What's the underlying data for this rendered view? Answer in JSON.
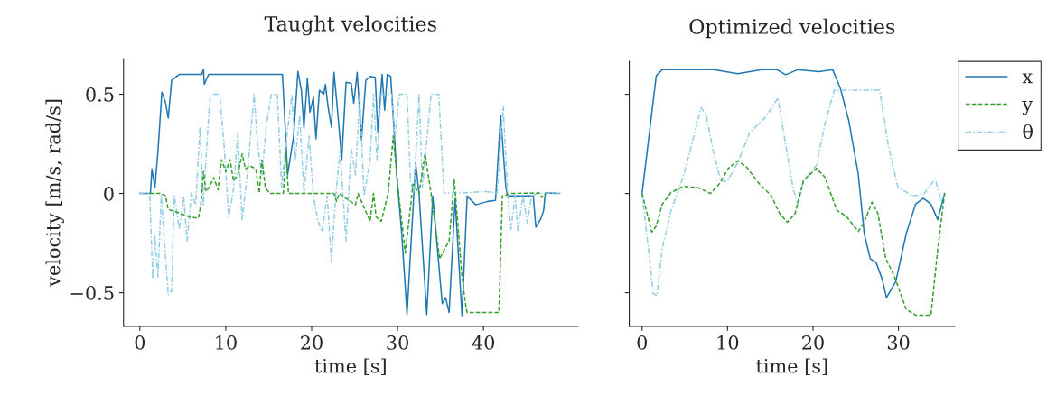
{
  "chart_data": [
    {
      "type": "line",
      "title": "Taught velocities",
      "xlabel": "time [s]",
      "ylabel": "velocity [m/s, rad/s]",
      "xlim": [
        -1.9,
        51
      ],
      "ylim": [
        -0.67,
        0.68
      ],
      "xticks": [
        0,
        10,
        20,
        30,
        40
      ],
      "yticks": [
        {
          "value": -0.5,
          "label": "−0.5"
        },
        0,
        0.5
      ],
      "grid": false,
      "legend": false,
      "series": [
        {
          "color": "#1f78b4",
          "line_style": "solid",
          "x": [
            0,
            1.05,
            1.23,
            1.4,
            1.75,
            2.1,
            2.56,
            2.98,
            3.3,
            3.7,
            4.56,
            7.2,
            7.4,
            7.5,
            8.0,
            16.6,
            17.2,
            17.9,
            18.4,
            18.8,
            19.1,
            19.5,
            19.8,
            20.2,
            20.5,
            20.9,
            21.4,
            21.6,
            21.9,
            22.3,
            22.6,
            23,
            23.5,
            24,
            24.6,
            24.9,
            25.3,
            25.8,
            26.3,
            26.8,
            27.4,
            27.7,
            28.2,
            28.5,
            28.8,
            29.2,
            29.7,
            29.9,
            30.5,
            31.1,
            32.1,
            32.5,
            33.4,
            34.1,
            35.2,
            35.6,
            36,
            36.7,
            37.5,
            38.1,
            39.1,
            40.5,
            41.4,
            42,
            42.6,
            42.8,
            45.8,
            46.1,
            46.7,
            47,
            47.2,
            48.9
          ],
          "values": [
            0,
            0,
            0,
            0.124,
            0.03,
            0.21,
            0.51,
            0.46,
            0.38,
            0.57,
            0.6,
            0.6,
            0.625,
            0.55,
            0.6,
            0.6,
            0.095,
            0.29,
            0.615,
            0.52,
            0.33,
            0.58,
            0.41,
            0.485,
            0.275,
            0.52,
            0.5,
            0.55,
            0.44,
            0.335,
            0.61,
            0.425,
            0.17,
            0.56,
            0.555,
            0.455,
            0.61,
            0.27,
            0.57,
            0.59,
            0.585,
            0.31,
            0.6,
            0.42,
            0.6,
            0.59,
            0.245,
            0.094,
            -0.21,
            -0.61,
            0.154,
            0,
            -0.61,
            -0.012,
            -0.555,
            -0.525,
            -0.6,
            -0.027,
            -0.615,
            -0.012,
            -0.057,
            -0.04,
            -0.035,
            0.395,
            0.033,
            -0.012,
            -0.012,
            -0.17,
            -0.125,
            -0.087,
            0.003,
            0
          ]
        },
        {
          "color": "#33a02c",
          "line_style": "dashed",
          "x": [
            1.16,
            1.5,
            2.5,
            2.98,
            3.3,
            4.4,
            5.8,
            6.8,
            7.1,
            7.4,
            7.7,
            8.1,
            8.6,
            9.1,
            9.5,
            10,
            10.5,
            10.9,
            11.4,
            11.9,
            12.3,
            12.8,
            13.5,
            13.9,
            14.2,
            14.6,
            15.1,
            16.7,
            17,
            17.3,
            22.6,
            22.9,
            23.2,
            25.1,
            25.4,
            26.8,
            27.2,
            27.5,
            28.1,
            28.9,
            29.5,
            30,
            30.9,
            31.8,
            32.5,
            33.2,
            33.9,
            34.9,
            35.6,
            36,
            36.6,
            37.5,
            37.9,
            38.1,
            41.8,
            42.2,
            43.3,
            46.5,
            46.8,
            47.3
          ],
          "values": [
            0,
            0,
            0,
            -0.012,
            -0.08,
            -0.095,
            -0.118,
            -0.125,
            -0.057,
            0.11,
            0.01,
            0.033,
            0.08,
            0.018,
            0.17,
            0.11,
            0.17,
            0.063,
            0.094,
            0.2,
            0.124,
            0.14,
            0.124,
            0.003,
            0.17,
            0.033,
            0,
            0,
            0.215,
            0,
            0,
            -0.04,
            0,
            -0.057,
            0,
            -0.14,
            0,
            -0.118,
            -0.14,
            0,
            0.29,
            0.048,
            -0.3,
            0.048,
            0,
            0.2,
            0,
            -0.33,
            -0.27,
            -0.24,
            0.07,
            -0.42,
            -0.555,
            -0.6,
            -0.6,
            -0.012,
            0,
            0.003,
            -0.02,
            0
          ]
        },
        {
          "color": "#91cde6",
          "line_style": "dashdot",
          "x": [
            0,
            1.0,
            1.16,
            1.5,
            1.75,
            2.1,
            2.5,
            2.8,
            3.3,
            3.7,
            4,
            4.6,
            5.1,
            5.5,
            6,
            6.5,
            7,
            7.4,
            7.9,
            8.2,
            9.3,
            9.8,
            10.35,
            10.9,
            11.4,
            11.9,
            12.5,
            13.3,
            13.7,
            14.2,
            14.7,
            15.3,
            16,
            16.5,
            17,
            17.7,
            18.1,
            18.6,
            19.1,
            19.7,
            20.2,
            20.7,
            21.2,
            21.8,
            22.3,
            22.8,
            23.3,
            24,
            24.6,
            25.1,
            25.6,
            26.1,
            26.8,
            27.2,
            27.6,
            28.1,
            29.3,
            29.7,
            30.2,
            31.1,
            31.5,
            31.9,
            32.5,
            32.9,
            33.9,
            34.8,
            35.4,
            37.7,
            40.2,
            41.6,
            42.3,
            42.8,
            43.2,
            43.7,
            44,
            44.6,
            45.1,
            45.6,
            46.3,
            48.9
          ],
          "values": [
            0,
            0,
            -0.01,
            -0.43,
            -0.21,
            -0.42,
            -0.01,
            -0.21,
            -0.51,
            -0.49,
            -0.012,
            -0.18,
            -0.012,
            -0.24,
            0.003,
            -0.057,
            0.335,
            -0.057,
            0.32,
            0.5,
            0.5,
            0.245,
            -0.118,
            0.018,
            0.305,
            -0.133,
            0.094,
            0.5,
            0.245,
            0.094,
            0.335,
            0.5,
            0.5,
            0.033,
            0.245,
            0.5,
            0.17,
            0.395,
            0.003,
            0.29,
            -0.012,
            -0.133,
            -0.193,
            -0.012,
            -0.34,
            -0.012,
            0.215,
            -0.24,
            0.23,
            0.094,
            0.5,
            -0.012,
            0.17,
            0.5,
            0.17,
            0.5,
            0.5,
            0.275,
            0.5,
            0.5,
            0.063,
            0.003,
            0.5,
            0.033,
            0.5,
            0.5,
            0.003,
            0.003,
            0.01,
            0.003,
            0.44,
            0.003,
            -0.18,
            -0.012,
            -0.193,
            -0.012,
            -0.148,
            -0.012,
            0,
            0
          ]
        }
      ]
    },
    {
      "type": "line",
      "title": "Optimized velocities",
      "xlabel": "time [s]",
      "xlim": [
        -1.5,
        36.6
      ],
      "ylim": [
        -0.67,
        0.666
      ],
      "xticks": [
        0,
        10,
        20,
        30
      ],
      "yticks": [
        -0.5,
        0,
        0.5
      ],
      "tick_labels": "x",
      "grid": false,
      "legend": "right",
      "series": [
        {
          "name": "x",
          "color": "#1f78b4",
          "line_style": "solid",
          "x": [
            0,
            1.66,
            2.36,
            8.4,
            11.2,
            14,
            15.8,
            16.8,
            18.2,
            20.7,
            22.3,
            23.2,
            24.2,
            25.3,
            26,
            26.7,
            27.4,
            28.1,
            28.6,
            29.7,
            30.9,
            32,
            32.9,
            33.8,
            34.6,
            35.4
          ],
          "values": [
            0,
            0.593,
            0.624,
            0.624,
            0.604,
            0.624,
            0.624,
            0.599,
            0.624,
            0.614,
            0.624,
            0.531,
            0.365,
            0.096,
            -0.204,
            -0.328,
            -0.349,
            -0.432,
            -0.525,
            -0.442,
            -0.204,
            -0.054,
            -0.024,
            -0.054,
            -0.132,
            0
          ]
        },
        {
          "name": "y",
          "color": "#33a02c",
          "line_style": "dashed",
          "x": [
            0,
            1.13,
            1.66,
            2.36,
            3.4,
            4.83,
            6.6,
            8.0,
            9.1,
            10.1,
            11.2,
            12.2,
            13.65,
            15.1,
            16.1,
            17,
            17.9,
            18.9,
            20.4,
            21.4,
            22.8,
            23.9,
            25.3,
            26,
            26.9,
            27.6,
            28.5,
            29.5,
            30.9,
            32,
            33.8,
            34.6,
            35.4
          ],
          "values": [
            0,
            -0.194,
            -0.163,
            -0.054,
            0.006,
            0.036,
            0.029,
            0,
            0.052,
            0.127,
            0.165,
            0.135,
            0.052,
            -0.009,
            -0.101,
            -0.145,
            -0.101,
            0.066,
            0.127,
            0.082,
            -0.085,
            -0.115,
            -0.191,
            -0.145,
            -0.043,
            -0.101,
            -0.326,
            -0.416,
            -0.583,
            -0.613,
            -0.613,
            -0.281,
            0
          ]
        },
        {
          "name": "θ",
          "color": "#91cde6",
          "line_style": "dashdot",
          "x": [
            0,
            0.95,
            1.3,
            1.73,
            2.36,
            3.4,
            4.8,
            5.9,
            6.9,
            7.5,
            8.4,
            9.2,
            9.95,
            11.2,
            12.6,
            14.4,
            15.9,
            16.8,
            17.7,
            18.2,
            18.9,
            20.4,
            21.4,
            22.5,
            27.8,
            28.8,
            29.9,
            31.6,
            33,
            34.3,
            35,
            35.4
          ],
          "values": [
            0,
            -0.356,
            -0.504,
            -0.515,
            -0.277,
            -0.085,
            0.082,
            0.262,
            0.432,
            0.396,
            0.2,
            0.066,
            0.059,
            0.157,
            0.307,
            0.383,
            0.481,
            0.247,
            0.021,
            -0.054,
            0.066,
            0.142,
            0.353,
            0.521,
            0.521,
            0.247,
            0.036,
            -0.013,
            -0.001,
            0.074,
            -0.038,
            0
          ]
        }
      ]
    }
  ]
}
